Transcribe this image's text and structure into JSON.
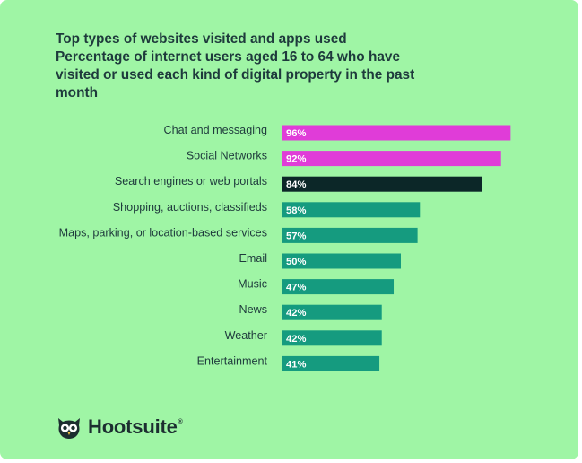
{
  "title": {
    "line1": "Top types of websites visited and apps used",
    "line2": "Percentage of internet users aged 16 to 64 who have",
    "line3": "visited or used each kind of digital property in the past",
    "line4": "month"
  },
  "logo": {
    "name": "Hootsuite",
    "reg_mark": "®",
    "icon": "owl-icon"
  },
  "colors": {
    "background": "#9ff5a5",
    "highlight": "#e03cd8",
    "dark": "#0c2728",
    "teal": "#159b7f",
    "text": "#1e3a3c"
  },
  "chart_data": {
    "type": "bar",
    "orientation": "horizontal",
    "categories": [
      "Chat and messaging",
      "Social Networks",
      "Search engines or web portals",
      "Shopping, auctions, classifieds",
      "Maps, parking, or location-based services",
      "Email",
      "Music",
      "News",
      "Weather",
      "Entertainment"
    ],
    "values": [
      96,
      92,
      84,
      58,
      57,
      50,
      47,
      42,
      42,
      41
    ],
    "value_labels": [
      "96%",
      "92%",
      "84%",
      "58%",
      "57%",
      "50%",
      "47%",
      "42%",
      "42%",
      "41%"
    ],
    "bar_colors": [
      "#e03cd8",
      "#e03cd8",
      "#0c2728",
      "#159b7f",
      "#159b7f",
      "#159b7f",
      "#159b7f",
      "#159b7f",
      "#159b7f",
      "#159b7f"
    ],
    "xlim": [
      0,
      100
    ],
    "grid": false,
    "legend": "none"
  }
}
